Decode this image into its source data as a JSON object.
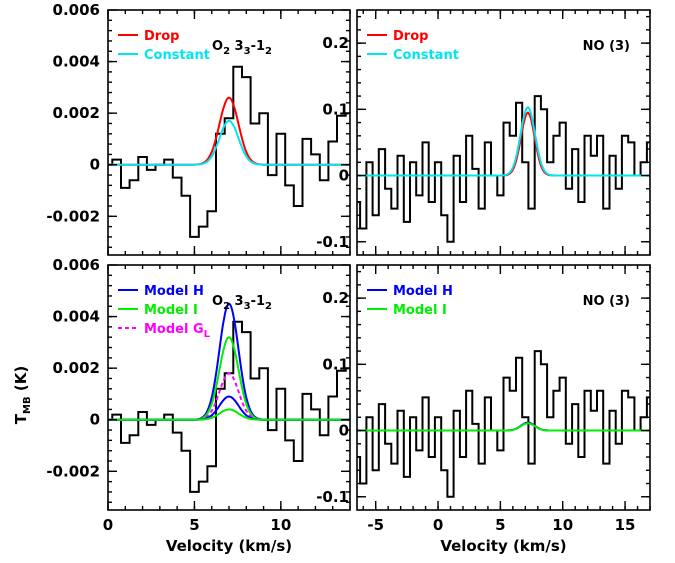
{
  "figure": {
    "ylabel": "T_MB (K)",
    "ylabel_main": "T",
    "ylabel_sub": "MB",
    "ylabel_unit": " (K)"
  },
  "chart_data": [
    {
      "type": "line",
      "panel": "top-left",
      "annotation": "O2 3_3-1_2",
      "xlabel": "",
      "ylabel": "",
      "xlim": [
        0,
        14
      ],
      "ylim": [
        -0.0035,
        0.006
      ],
      "yticks": [
        -0.002,
        0,
        0.002,
        0.004,
        0.006
      ],
      "ytick_labels": [
        "-0.002",
        "0",
        "0.002",
        "0.004",
        "0.006"
      ],
      "xticks": [
        0,
        5,
        10
      ],
      "xtick_labels": [],
      "legend_position": "top-left",
      "series": [
        {
          "name": "",
          "style": "histogram",
          "color": "#000000",
          "x": [
            0,
            0.5,
            1,
            1.5,
            2,
            2.5,
            3,
            3.5,
            4,
            4.5,
            5,
            5.5,
            6,
            6.5,
            7,
            7.5,
            8,
            8.5,
            9,
            9.5,
            10,
            10.5,
            11,
            11.5,
            12,
            12.5,
            13,
            13.5,
            14
          ],
          "y": [
            0,
            0.0002,
            -0.0009,
            -0.0006,
            0.0003,
            -0.0002,
            0,
            0.0002,
            -0.0005,
            -0.0012,
            -0.0028,
            -0.0024,
            -0.0018,
            0.0012,
            0.0018,
            0.0038,
            0.0034,
            0.0016,
            0.002,
            -0.0004,
            0.0012,
            -0.0008,
            -0.0016,
            0.001,
            0.0004,
            -0.0006,
            0.0009,
            0.0019,
            0.002
          ]
        },
        {
          "name": "Drop",
          "style": "line",
          "color": "#ff0000",
          "gaussian": {
            "center": 7.0,
            "amp": 0.0026,
            "sigma": 0.55
          }
        },
        {
          "name": "Constant",
          "style": "line",
          "color": "#00e5ee",
          "gaussian": {
            "center": 7.0,
            "amp": 0.0017,
            "sigma": 0.55
          }
        }
      ]
    },
    {
      "type": "line",
      "panel": "top-right",
      "annotation": "NO (3)",
      "xlabel": "",
      "ylabel": "",
      "xlim": [
        -6.5,
        17
      ],
      "ylim": [
        -0.12,
        0.25
      ],
      "yticks": [
        -0.1,
        0,
        0.1,
        0.2
      ],
      "ytick_labels": [
        "-0.1",
        "0",
        "0.1",
        "0.2"
      ],
      "xticks": [
        -5,
        0,
        5,
        10,
        15
      ],
      "xtick_labels": [],
      "legend_position": "top-left",
      "series": [
        {
          "name": "",
          "style": "histogram",
          "color": "#000000",
          "x": [
            -6.5,
            -6,
            -5.5,
            -5,
            -4.5,
            -4,
            -3.5,
            -3,
            -2.5,
            -2,
            -1.5,
            -1,
            -0.5,
            0,
            0.5,
            1,
            1.5,
            2,
            2.5,
            3,
            3.5,
            4,
            4.5,
            5,
            5.5,
            6,
            6.5,
            7,
            7.5,
            8,
            8.5,
            9,
            9.5,
            10,
            10.5,
            11,
            11.5,
            12,
            12.5,
            13,
            13.5,
            14,
            14.5,
            15,
            15.5,
            16,
            16.5,
            17
          ],
          "y": [
            -0.04,
            -0.08,
            0.02,
            -0.06,
            0.04,
            -0.02,
            -0.05,
            0.03,
            -0.07,
            0.02,
            -0.03,
            0.05,
            -0.04,
            0.02,
            -0.06,
            -0.1,
            0.03,
            -0.04,
            0.06,
            0.01,
            -0.05,
            0.05,
            0.0,
            -0.03,
            0.08,
            0.06,
            0.11,
            0.02,
            -0.05,
            0.12,
            0.1,
            0.02,
            0.06,
            0.08,
            -0.02,
            0.04,
            -0.04,
            0.06,
            0.03,
            0.06,
            -0.05,
            0.03,
            -0.02,
            0.06,
            0.05,
            0.0,
            0.02,
            0.05
          ]
        },
        {
          "name": "Drop",
          "style": "line",
          "color": "#ff0000",
          "gaussian": {
            "center": 7.2,
            "amp": 0.095,
            "sigma": 0.55
          }
        },
        {
          "name": "Constant",
          "style": "line",
          "color": "#00e5ee",
          "gaussian": {
            "center": 7.2,
            "amp": 0.103,
            "sigma": 0.58
          }
        }
      ]
    },
    {
      "type": "line",
      "panel": "bottom-left",
      "annotation": "O2 3_3-1_2",
      "xlabel": "Velocity (km/s)",
      "ylabel": "",
      "xlim": [
        0,
        14
      ],
      "ylim": [
        -0.0035,
        0.006
      ],
      "yticks": [
        -0.002,
        0,
        0.002,
        0.004,
        0.006
      ],
      "ytick_labels": [
        "-0.002",
        "0",
        "0.002",
        "0.004",
        "0.006"
      ],
      "xticks": [
        0,
        5,
        10
      ],
      "xtick_labels": [
        "0",
        "5",
        "10"
      ],
      "legend_position": "top-left",
      "series": [
        {
          "name": "",
          "style": "histogram",
          "color": "#000000",
          "x": [
            0,
            0.5,
            1,
            1.5,
            2,
            2.5,
            3,
            3.5,
            4,
            4.5,
            5,
            5.5,
            6,
            6.5,
            7,
            7.5,
            8,
            8.5,
            9,
            9.5,
            10,
            10.5,
            11,
            11.5,
            12,
            12.5,
            13,
            13.5,
            14
          ],
          "y": [
            0,
            0.0002,
            -0.0009,
            -0.0006,
            0.0003,
            -0.0002,
            0,
            0.0002,
            -0.0005,
            -0.0012,
            -0.0028,
            -0.0024,
            -0.0018,
            0.0012,
            0.0018,
            0.0038,
            0.0034,
            0.0016,
            0.002,
            -0.0004,
            0.0012,
            -0.0008,
            -0.0016,
            0.001,
            0.0004,
            -0.0006,
            0.0009,
            0.0019,
            0.002
          ]
        },
        {
          "name": "Model H",
          "style": "line",
          "color": "#0000ff",
          "gaussian": {
            "center": 7.0,
            "amp": 0.0045,
            "sigma": 0.55
          }
        },
        {
          "name": "Model I",
          "style": "line",
          "color": "#00ee00",
          "gaussian": {
            "center": 7.0,
            "amp": 0.0032,
            "sigma": 0.55
          }
        },
        {
          "name": "Model G_L",
          "style": "dashed",
          "color": "#ff00ff",
          "gaussian": {
            "center": 7.0,
            "amp": 0.0018,
            "sigma": 0.55
          }
        },
        {
          "name": "",
          "style": "line",
          "color": "#0000ff",
          "gaussian": {
            "center": 7.0,
            "amp": 0.0009,
            "sigma": 0.55
          }
        },
        {
          "name": "",
          "style": "line",
          "color": "#00ee00",
          "gaussian": {
            "center": 7.0,
            "amp": 0.0004,
            "sigma": 0.55
          }
        }
      ]
    },
    {
      "type": "line",
      "panel": "bottom-right",
      "annotation": "NO (3)",
      "xlabel": "Velocity (km/s)",
      "ylabel": "",
      "xlim": [
        -6.5,
        17
      ],
      "ylim": [
        -0.12,
        0.25
      ],
      "yticks": [
        -0.1,
        0,
        0.1,
        0.2
      ],
      "ytick_labels": [
        "-0.1",
        "0",
        "0.1",
        "0.2"
      ],
      "xticks": [
        -5,
        0,
        5,
        10,
        15
      ],
      "xtick_labels": [
        "-5",
        "0",
        "5",
        "10",
        "15"
      ],
      "legend_position": "top-left",
      "series": [
        {
          "name": "",
          "style": "histogram",
          "color": "#000000",
          "x": [
            -6.5,
            -6,
            -5.5,
            -5,
            -4.5,
            -4,
            -3.5,
            -3,
            -2.5,
            -2,
            -1.5,
            -1,
            -0.5,
            0,
            0.5,
            1,
            1.5,
            2,
            2.5,
            3,
            3.5,
            4,
            4.5,
            5,
            5.5,
            6,
            6.5,
            7,
            7.5,
            8,
            8.5,
            9,
            9.5,
            10,
            10.5,
            11,
            11.5,
            12,
            12.5,
            13,
            13.5,
            14,
            14.5,
            15,
            15.5,
            16,
            16.5,
            17
          ],
          "y": [
            -0.04,
            -0.08,
            0.02,
            -0.06,
            0.04,
            -0.02,
            -0.05,
            0.03,
            -0.07,
            0.02,
            -0.03,
            0.05,
            -0.04,
            0.02,
            -0.06,
            -0.1,
            0.03,
            -0.04,
            0.06,
            0.01,
            -0.05,
            0.05,
            0.0,
            -0.03,
            0.08,
            0.06,
            0.11,
            0.02,
            -0.05,
            0.12,
            0.1,
            0.02,
            0.06,
            0.08,
            -0.02,
            0.04,
            -0.04,
            0.06,
            0.03,
            0.06,
            -0.05,
            0.03,
            -0.02,
            0.06,
            0.05,
            0.0,
            0.02,
            0.05
          ]
        },
        {
          "name": "Model H",
          "style": "line",
          "color": "#0000ff",
          "gaussian": {
            "center": 7.2,
            "amp": 0.012,
            "sigma": 0.55
          }
        },
        {
          "name": "Model I",
          "style": "line",
          "color": "#00ee00",
          "gaussian": {
            "center": 7.2,
            "amp": 0.011,
            "sigma": 0.55
          }
        }
      ]
    }
  ]
}
